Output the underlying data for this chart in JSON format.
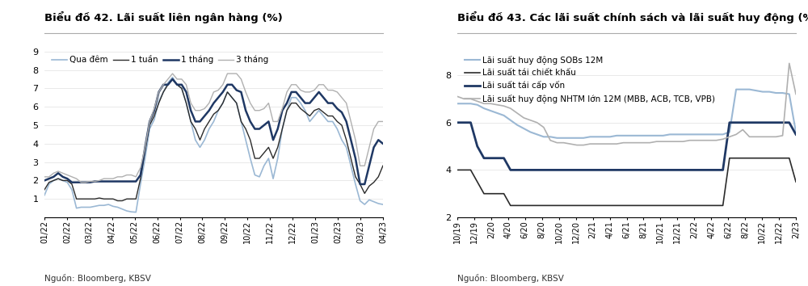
{
  "chart1": {
    "title": "Biểu đồ 42. Lãi suất liên ngân hàng (%)",
    "source": "Nguồn: Bloomberg, KBSV",
    "ylim": [
      0,
      9
    ],
    "yticks": [
      1,
      2,
      3,
      4,
      5,
      6,
      7,
      8,
      9
    ],
    "xtick_labels": [
      "01/22",
      "02/22",
      "03/22",
      "04/22",
      "05/22",
      "06/22",
      "07/22",
      "08/22",
      "09/22",
      "10/22",
      "11/22",
      "12/22",
      "01/23",
      "02/23",
      "03/23",
      "04/23"
    ],
    "legend": [
      "Qua đêm",
      "1 tuần",
      "1 tháng",
      "3 tháng"
    ],
    "colors": [
      "#9bb8d4",
      "#2b2b2b",
      "#1f3864",
      "#b0b0b0"
    ],
    "linewidths": [
      1.2,
      1.0,
      1.8,
      1.0
    ],
    "series": {
      "qua_dem": [
        1.2,
        1.8,
        2.0,
        2.1,
        2.0,
        1.9,
        1.5,
        0.5,
        0.55,
        0.55,
        0.55,
        0.6,
        0.65,
        0.65,
        0.7,
        0.6,
        0.55,
        0.45,
        0.35,
        0.3,
        0.28,
        1.8,
        3.2,
        4.8,
        5.3,
        6.3,
        6.8,
        7.3,
        7.6,
        7.2,
        7.0,
        6.2,
        5.2,
        4.2,
        3.8,
        4.2,
        4.8,
        5.2,
        5.8,
        6.2,
        6.8,
        6.5,
        6.2,
        5.2,
        4.2,
        3.2,
        2.3,
        2.2,
        2.8,
        3.2,
        2.1,
        3.2,
        4.8,
        5.8,
        6.5,
        6.5,
        6.2,
        5.8,
        5.2,
        5.5,
        5.8,
        5.5,
        5.2,
        5.2,
        4.8,
        4.2,
        3.8,
        2.8,
        1.8,
        0.9,
        0.7,
        0.95,
        0.85,
        0.75,
        0.7
      ],
      "mot_tuan": [
        1.5,
        1.9,
        2.0,
        2.1,
        2.0,
        2.0,
        1.8,
        1.0,
        1.0,
        1.0,
        1.0,
        1.0,
        1.05,
        1.0,
        1.0,
        1.0,
        0.9,
        0.9,
        1.0,
        1.0,
        1.0,
        2.1,
        3.6,
        5.0,
        5.5,
        6.2,
        6.8,
        7.2,
        7.5,
        7.2,
        7.0,
        6.2,
        5.2,
        4.8,
        4.2,
        4.8,
        5.2,
        5.6,
        5.8,
        6.2,
        6.8,
        6.5,
        6.2,
        5.2,
        4.8,
        4.2,
        3.2,
        3.2,
        3.5,
        3.8,
        3.2,
        3.8,
        4.8,
        5.8,
        6.2,
        6.2,
        5.9,
        5.7,
        5.5,
        5.8,
        5.9,
        5.7,
        5.5,
        5.5,
        5.2,
        5.0,
        4.2,
        3.2,
        2.2,
        1.8,
        1.3,
        1.7,
        1.9,
        2.2,
        2.8
      ],
      "mot_thang": [
        2.0,
        2.1,
        2.2,
        2.4,
        2.2,
        2.1,
        1.9,
        1.9,
        1.9,
        1.9,
        1.9,
        1.95,
        1.95,
        1.95,
        1.95,
        1.95,
        1.95,
        1.95,
        1.95,
        1.95,
        1.95,
        2.3,
        3.8,
        5.2,
        5.8,
        6.8,
        7.2,
        7.2,
        7.5,
        7.2,
        7.2,
        6.8,
        5.8,
        5.2,
        5.2,
        5.5,
        5.8,
        6.2,
        6.5,
        6.8,
        7.2,
        7.2,
        6.9,
        6.8,
        5.8,
        5.2,
        4.8,
        4.8,
        5.0,
        5.2,
        4.2,
        4.8,
        5.8,
        6.2,
        6.8,
        6.8,
        6.5,
        6.2,
        6.2,
        6.5,
        6.8,
        6.5,
        6.2,
        6.2,
        5.9,
        5.7,
        5.2,
        4.2,
        3.2,
        1.8,
        1.8,
        2.8,
        3.8,
        4.2,
        4.0
      ],
      "ba_thang": [
        2.2,
        2.2,
        2.4,
        2.5,
        2.4,
        2.3,
        2.2,
        2.1,
        1.9,
        1.9,
        1.95,
        1.95,
        2.0,
        2.1,
        2.1,
        2.1,
        2.2,
        2.2,
        2.3,
        2.3,
        2.2,
        2.7,
        3.8,
        5.2,
        5.9,
        6.8,
        7.2,
        7.5,
        7.8,
        7.5,
        7.5,
        7.2,
        6.2,
        5.8,
        5.8,
        5.9,
        6.2,
        6.8,
        6.9,
        7.2,
        7.8,
        7.8,
        7.8,
        7.5,
        6.8,
        6.2,
        5.8,
        5.8,
        5.9,
        6.2,
        5.2,
        5.2,
        5.9,
        6.8,
        7.2,
        7.2,
        6.9,
        6.8,
        6.8,
        6.9,
        7.2,
        7.2,
        6.9,
        6.9,
        6.8,
        6.5,
        6.2,
        5.2,
        4.2,
        2.8,
        2.8,
        3.8,
        4.8,
        5.2,
        5.2
      ]
    }
  },
  "chart2": {
    "title": "Biểu đồ 43. Các lãi suất chính sách và lãi suất huy động (%)",
    "source": "Nguồn: Bloomberg, KBSV",
    "ylim": [
      2.0,
      9.0
    ],
    "yticks": [
      2.0,
      4.0,
      6.0,
      8.0
    ],
    "xtick_labels": [
      "10/19",
      "12/19",
      "2/20",
      "4/20",
      "6/20",
      "8/20",
      "10/20",
      "12/20",
      "2/21",
      "4/21",
      "6/21",
      "8/21",
      "10/21",
      "12/21",
      "2/22",
      "4/22",
      "6/22",
      "8/22",
      "10/22",
      "12/22",
      "2/23"
    ],
    "legend": [
      "Lãi suất huy động SOBs 12M",
      "Lãi suất tái chiết khấu",
      "Lãi suất tái cấp vốn",
      "Lãi suất huy động NHTM lớn 12M (MBB, ACB, TCB, VPB)"
    ],
    "colors": [
      "#9bb8d4",
      "#2b2b2b",
      "#1f3864",
      "#b0b0b0"
    ],
    "linewidths": [
      1.5,
      1.2,
      2.0,
      1.2
    ],
    "series": {
      "sobs_12m": [
        6.8,
        6.8,
        6.8,
        6.75,
        6.6,
        6.5,
        6.4,
        6.3,
        6.1,
        5.9,
        5.75,
        5.6,
        5.5,
        5.4,
        5.4,
        5.35,
        5.35,
        5.35,
        5.35,
        5.35,
        5.4,
        5.4,
        5.4,
        5.4,
        5.45,
        5.45,
        5.45,
        5.45,
        5.45,
        5.45,
        5.45,
        5.45,
        5.5,
        5.5,
        5.5,
        5.5,
        5.5,
        5.5,
        5.5,
        5.5,
        5.5,
        5.6,
        7.4,
        7.4,
        7.4,
        7.35,
        7.3,
        7.3,
        7.25,
        7.25,
        7.2,
        5.6
      ],
      "tai_chiet_khau": [
        4.0,
        4.0,
        4.0,
        3.5,
        3.0,
        3.0,
        3.0,
        3.0,
        2.5,
        2.5,
        2.5,
        2.5,
        2.5,
        2.5,
        2.5,
        2.5,
        2.5,
        2.5,
        2.5,
        2.5,
        2.5,
        2.5,
        2.5,
        2.5,
        2.5,
        2.5,
        2.5,
        2.5,
        2.5,
        2.5,
        2.5,
        2.5,
        2.5,
        2.5,
        2.5,
        2.5,
        2.5,
        2.5,
        2.5,
        2.5,
        2.5,
        4.5,
        4.5,
        4.5,
        4.5,
        4.5,
        4.5,
        4.5,
        4.5,
        4.5,
        4.5,
        3.5
      ],
      "tai_cap_von": [
        6.0,
        6.0,
        6.0,
        5.0,
        4.5,
        4.5,
        4.5,
        4.5,
        4.0,
        4.0,
        4.0,
        4.0,
        4.0,
        4.0,
        4.0,
        4.0,
        4.0,
        4.0,
        4.0,
        4.0,
        4.0,
        4.0,
        4.0,
        4.0,
        4.0,
        4.0,
        4.0,
        4.0,
        4.0,
        4.0,
        4.0,
        4.0,
        4.0,
        4.0,
        4.0,
        4.0,
        4.0,
        4.0,
        4.0,
        4.0,
        4.0,
        6.0,
        6.0,
        6.0,
        6.0,
        6.0,
        6.0,
        6.0,
        6.0,
        6.0,
        6.0,
        5.5
      ],
      "nhtm_lon_12m": [
        7.1,
        7.0,
        7.0,
        6.9,
        6.8,
        6.8,
        6.75,
        6.7,
        6.6,
        6.4,
        6.2,
        6.1,
        6.0,
        5.8,
        5.25,
        5.15,
        5.15,
        5.1,
        5.05,
        5.05,
        5.1,
        5.1,
        5.1,
        5.1,
        5.1,
        5.15,
        5.15,
        5.15,
        5.15,
        5.15,
        5.2,
        5.2,
        5.2,
        5.2,
        5.2,
        5.25,
        5.25,
        5.25,
        5.25,
        5.25,
        5.3,
        5.4,
        5.5,
        5.7,
        5.4,
        5.4,
        5.4,
        5.4,
        5.4,
        5.45,
        8.5,
        7.2
      ]
    }
  }
}
